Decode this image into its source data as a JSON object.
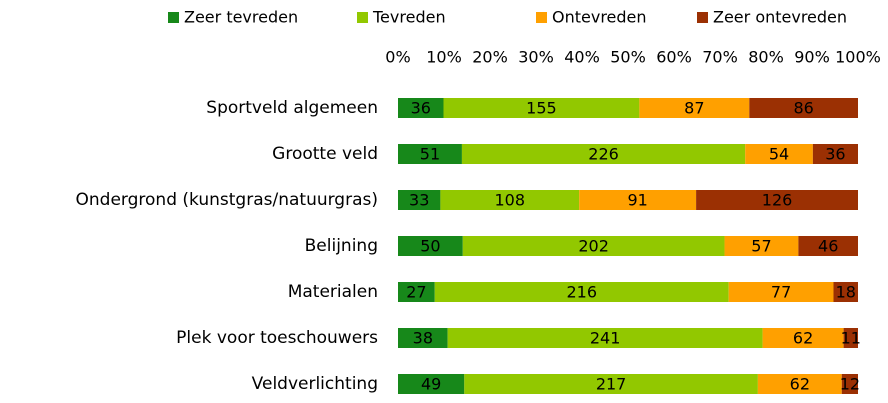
{
  "chart_data": {
    "type": "bar",
    "orientation": "horizontal",
    "stacked": "percent",
    "categories": [
      "Sportveld algemeen",
      "Grootte veld",
      "Ondergrond (kunstgras/natuurgras)",
      "Belijning",
      "Materialen",
      "Plek voor toeschouwers",
      "Veldverlichting"
    ],
    "series": [
      {
        "name": "Zeer tevreden",
        "color": "#17881a",
        "values": [
          36,
          51,
          33,
          50,
          27,
          38,
          49
        ]
      },
      {
        "name": "Tevreden",
        "color": "#92c800",
        "values": [
          155,
          226,
          108,
          202,
          216,
          241,
          217
        ]
      },
      {
        "name": "Ontevreden",
        "color": "#ffa000",
        "values": [
          87,
          54,
          91,
          57,
          77,
          62,
          62
        ]
      },
      {
        "name": "Zeer ontevreden",
        "color": "#9b3003",
        "values": [
          86,
          36,
          126,
          46,
          18,
          11,
          12
        ]
      }
    ],
    "xlim": [
      0,
      100
    ],
    "xticks": [
      {
        "value": 0,
        "label": "0%"
      },
      {
        "value": 10,
        "label": "10%"
      },
      {
        "value": 20,
        "label": "20%"
      },
      {
        "value": 30,
        "label": "30%"
      },
      {
        "value": 40,
        "label": "40%"
      },
      {
        "value": 50,
        "label": "50%"
      },
      {
        "value": 60,
        "label": "60%"
      },
      {
        "value": 70,
        "label": "70%"
      },
      {
        "value": 80,
        "label": "80%"
      },
      {
        "value": 90,
        "label": "90%"
      },
      {
        "value": 100,
        "label": "100%"
      }
    ],
    "legend": "top",
    "grid": false
  }
}
